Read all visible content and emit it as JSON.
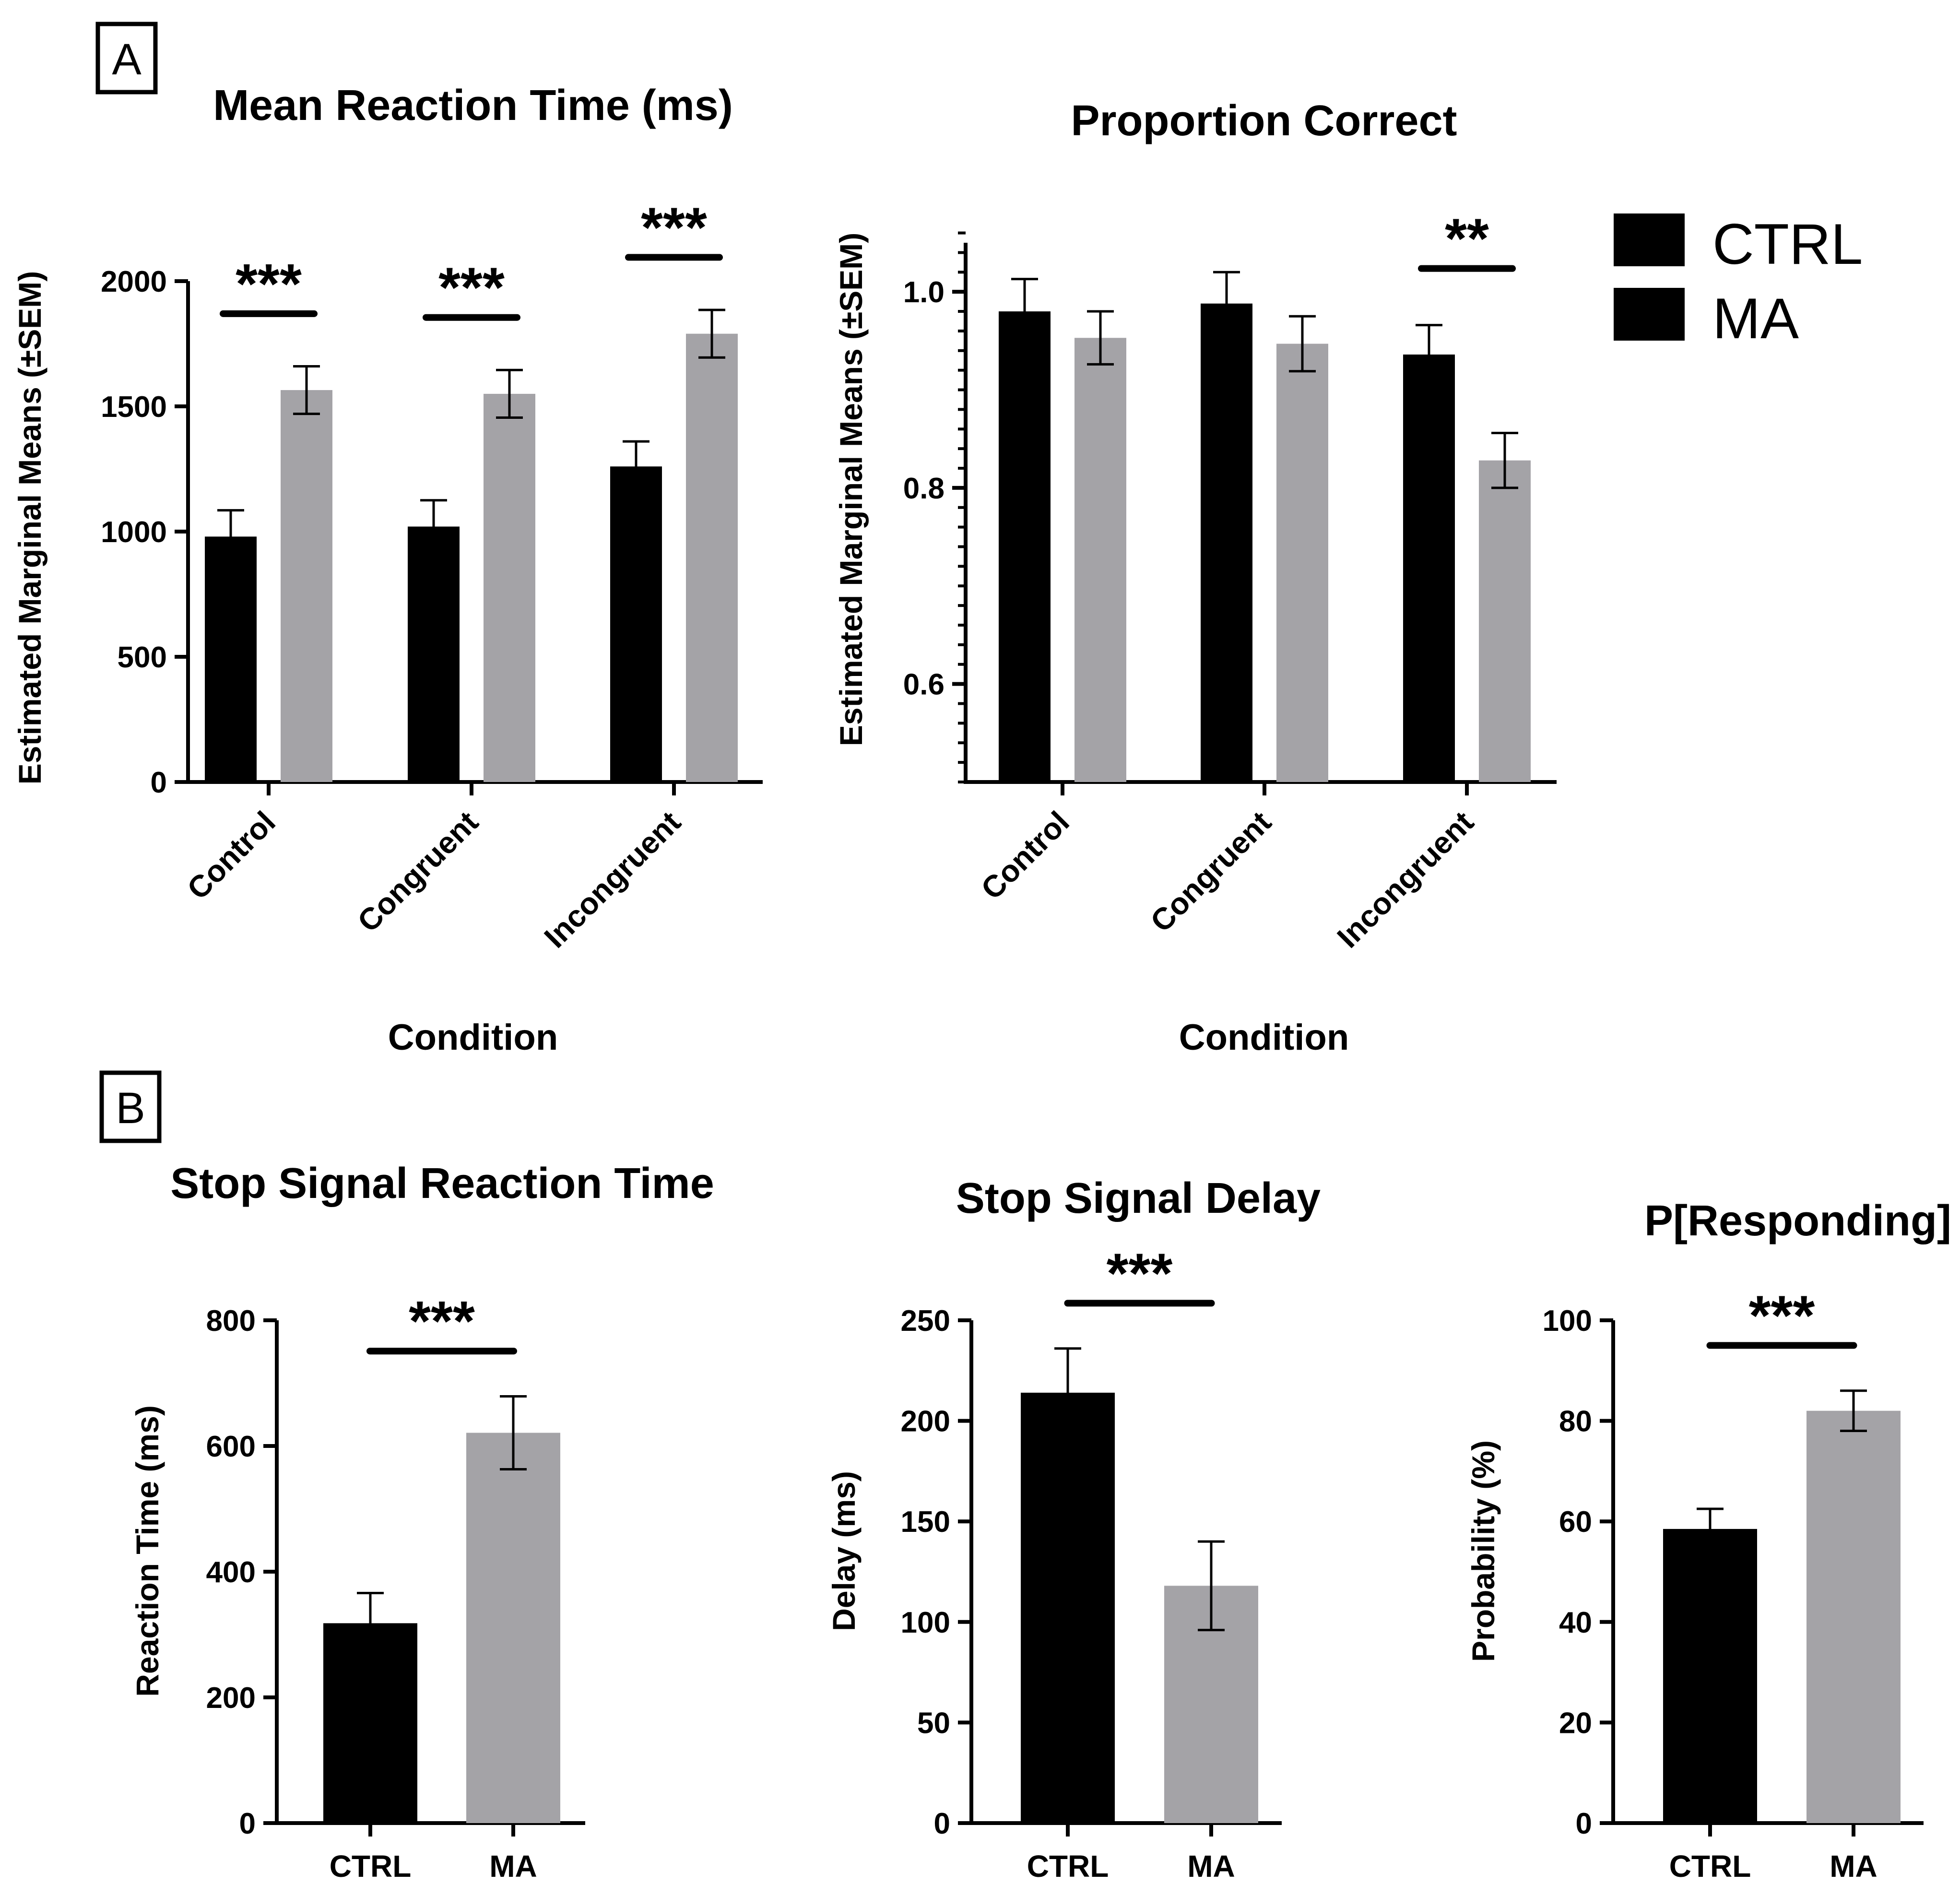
{
  "colors": {
    "ctrl": "#000000",
    "ma": "#a4a3a7"
  },
  "panels": {
    "a": "A",
    "b": "B"
  },
  "legend": [
    {
      "name": "CTRL",
      "color": "#000000"
    },
    {
      "name": "MA",
      "color": "#a4a3a7"
    }
  ],
  "chart_data": [
    {
      "id": "rt",
      "type": "bar",
      "title": "Mean Reaction Time (ms)",
      "xlabel": "Condition",
      "ylabel": "Estimated Marginal Means (±SEM)",
      "categories": [
        "Control",
        "Congruent",
        "Incongruent"
      ],
      "series": [
        {
          "name": "CTRL",
          "values": [
            980,
            1020,
            1260
          ],
          "errors": [
            105,
            105,
            100
          ]
        },
        {
          "name": "MA",
          "values": [
            1565,
            1550,
            1790
          ],
          "errors": [
            95,
            95,
            95
          ]
        }
      ],
      "ylim": [
        0,
        2000
      ],
      "yticks": [
        0,
        500,
        1000,
        1500,
        2000
      ],
      "ytick_labels": [
        "0",
        "500",
        "1000",
        "1500",
        "2000"
      ],
      "significance": [
        {
          "category": 0,
          "label": "***"
        },
        {
          "category": 1,
          "label": "***"
        },
        {
          "category": 2,
          "label": "***"
        }
      ]
    },
    {
      "id": "pc",
      "type": "bar",
      "title": "Proportion Correct",
      "xlabel": "Condition",
      "ylabel": "Estimated Marginal Means (±SEM)",
      "categories": [
        "Control",
        "Congruent",
        "Incongruent"
      ],
      "series": [
        {
          "name": "CTRL",
          "values": [
            0.98,
            0.988,
            0.936
          ],
          "errors": [
            0.033,
            0.032,
            0.03
          ]
        },
        {
          "name": "MA",
          "values": [
            0.953,
            0.947,
            0.828
          ],
          "errors": [
            0.027,
            0.028,
            0.028
          ]
        }
      ],
      "ylim": [
        0.5,
        1.05
      ],
      "yticks": [
        0.6,
        0.8,
        1.0
      ],
      "ytick_labels": [
        "0.6",
        "0.8",
        "1.0"
      ],
      "minor_step": 0.02,
      "significance": [
        {
          "category": 2,
          "label": "**"
        }
      ]
    },
    {
      "id": "ssrt",
      "type": "bar",
      "title": "Stop Signal Reaction Time",
      "xlabel": "",
      "ylabel": "Reaction Time (ms)",
      "categories": [
        "CTRL",
        "MA"
      ],
      "values": [
        318,
        621
      ],
      "errors": [
        48,
        58
      ],
      "ylim": [
        0,
        800
      ],
      "yticks": [
        0,
        200,
        400,
        600,
        800
      ],
      "ytick_labels": [
        "0",
        "200",
        "400",
        "600",
        "800"
      ],
      "significance": [
        {
          "label": "***"
        }
      ]
    },
    {
      "id": "ssd",
      "type": "bar",
      "title": "Stop Signal Delay",
      "xlabel": "",
      "ylabel": "Delay (ms)",
      "categories": [
        "CTRL",
        "MA"
      ],
      "values": [
        214,
        118
      ],
      "errors": [
        22,
        22
      ],
      "ylim": [
        0,
        250
      ],
      "yticks": [
        0,
        50,
        100,
        150,
        200,
        250
      ],
      "ytick_labels": [
        "0",
        "50",
        "100",
        "150",
        "200",
        "250"
      ],
      "significance": [
        {
          "label": "***"
        }
      ]
    },
    {
      "id": "presp",
      "type": "bar",
      "title": "P[Responding]",
      "xlabel": "",
      "ylabel": "Probability (%)",
      "categories": [
        "CTRL",
        "MA"
      ],
      "values": [
        58.5,
        82
      ],
      "errors": [
        4,
        4
      ],
      "ylim": [
        0,
        100
      ],
      "yticks": [
        0,
        20,
        40,
        60,
        80,
        100
      ],
      "ytick_labels": [
        "0",
        "20",
        "40",
        "60",
        "80",
        "100"
      ],
      "significance": [
        {
          "label": "***"
        }
      ]
    }
  ]
}
